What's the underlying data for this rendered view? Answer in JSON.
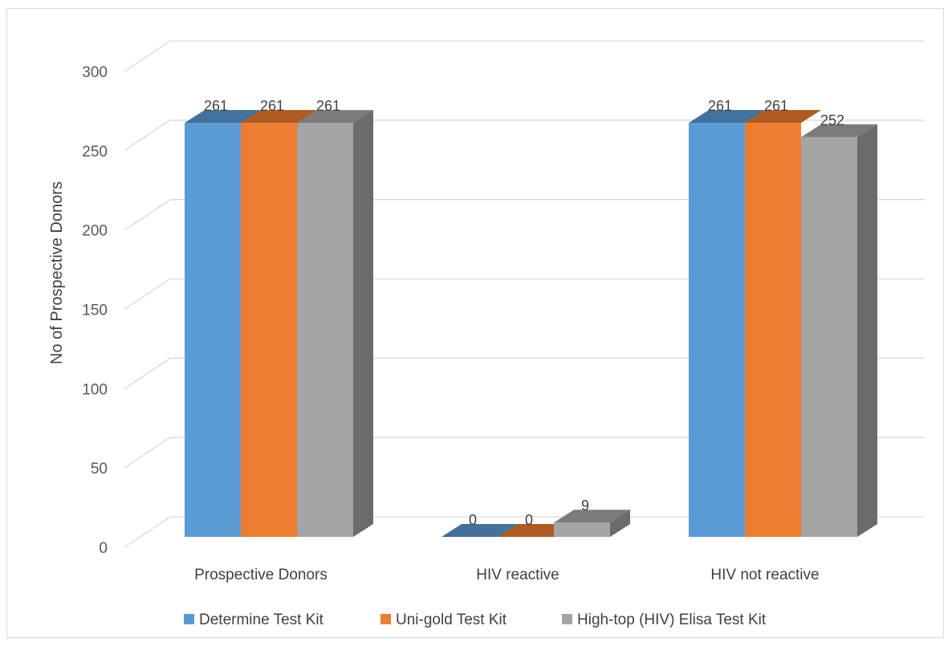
{
  "chart_data": {
    "type": "bar",
    "style": "3d-clustered-column",
    "categories": [
      "Prospective Donors",
      "HIV reactive",
      "HIV not reactive"
    ],
    "series": [
      {
        "name": "Determine Test Kit",
        "values": [
          261,
          0,
          261
        ],
        "color": "#5b9bd5",
        "top_color": "#41719c"
      },
      {
        "name": "Uni-gold Test Kit",
        "values": [
          261,
          0,
          261
        ],
        "color": "#ed7d31",
        "top_color": "#ae5a21"
      },
      {
        "name": "High-top (HIV) Elisa Test Kit",
        "values": [
          261,
          9,
          252
        ],
        "color": "#a5a5a5",
        "top_color": "#7b7b7b"
      }
    ],
    "data_labels": [
      [
        "261",
        "0",
        "261"
      ],
      [
        "261",
        "0",
        "261"
      ],
      [
        "261",
        "9",
        "252"
      ]
    ],
    "ylabel": "No of Prospective Donors",
    "xlabel": "",
    "ylim": [
      0,
      300
    ],
    "yticks": [
      0,
      50,
      100,
      150,
      200,
      250,
      300
    ],
    "ytick_labels": [
      "0",
      "50",
      "100",
      "150",
      "200",
      "250",
      "300"
    ],
    "grid": true,
    "legend_position": "bottom"
  }
}
